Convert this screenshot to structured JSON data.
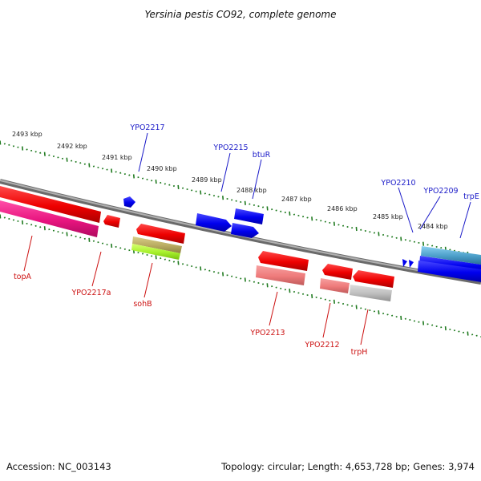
{
  "title": "Yersinia pestis CO92, complete genome",
  "footer": {
    "accession": "Accession: NC_003143",
    "summary": "Topology: circular; Length: 4,653,728 bp; Genes: 3,974"
  },
  "colors": {
    "background": "#ffffff",
    "backbone": "#8a8a8a",
    "tick": "#1f7a1f",
    "forward_label": "#1a1ac8",
    "reverse_label": "#cc1111",
    "kbp_label": "#222222"
  },
  "scale_labels": [
    "2493 kbp",
    "2492 kbp",
    "2491 kbp",
    "2490 kbp",
    "2489 kbp",
    "2488 kbp",
    "2487 kbp",
    "2486 kbp",
    "2485 kbp",
    "2484 kbp"
  ],
  "forward_gene_labels": [
    "YPO2217",
    "YPO2215",
    "btuR",
    "YPO2210",
    "YPO2209",
    "trpE"
  ],
  "reverse_gene_labels": [
    "topA",
    "YPO2217a",
    "sohB",
    "YPO2213",
    "YPO2212",
    "trpH"
  ]
}
